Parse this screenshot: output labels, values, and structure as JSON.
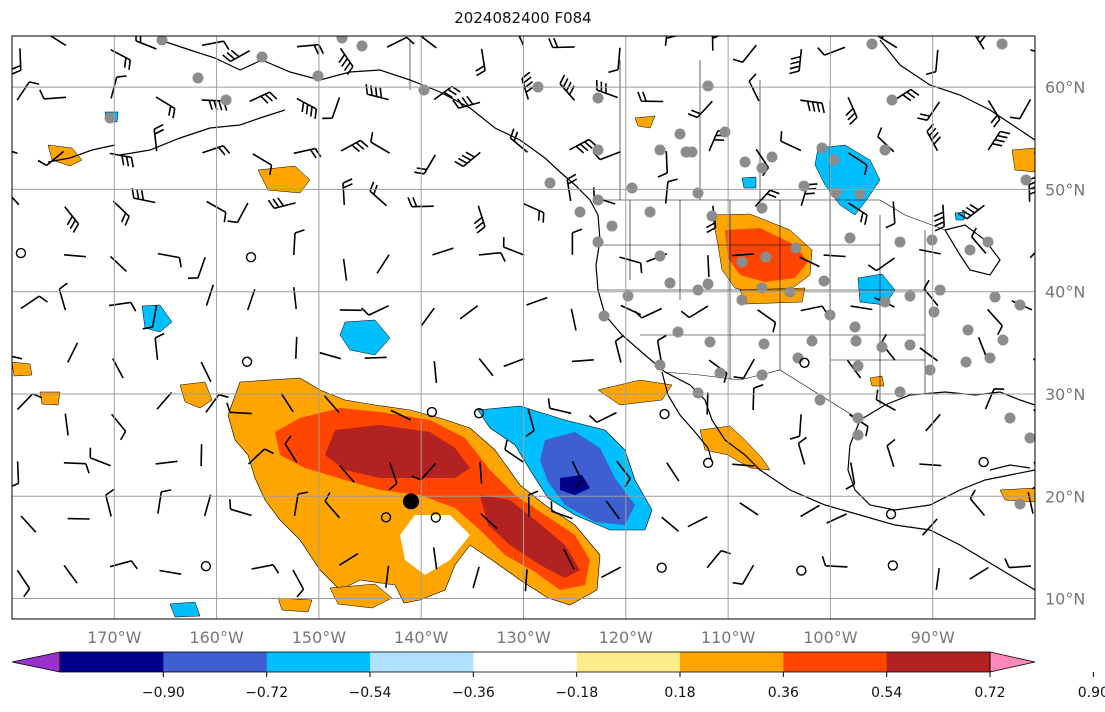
{
  "title": "2024082400 F084",
  "map": {
    "lon_range": [
      -180,
      -80
    ],
    "lat_range": [
      8,
      65
    ],
    "lat_ticks": [
      {
        "value": 60,
        "label": "60°N"
      },
      {
        "value": 50,
        "label": "50°N"
      },
      {
        "value": 40,
        "label": "40°N"
      },
      {
        "value": 30,
        "label": "30°N"
      },
      {
        "value": 20,
        "label": "20°N"
      },
      {
        "value": 10,
        "label": "10°N"
      }
    ],
    "lon_ticks": [
      {
        "value": -170,
        "label": "170°W"
      },
      {
        "value": -160,
        "label": "160°W"
      },
      {
        "value": -150,
        "label": "150°W"
      },
      {
        "value": -140,
        "label": "140°W"
      },
      {
        "value": -130,
        "label": "130°W"
      },
      {
        "value": -120,
        "label": "120°W"
      },
      {
        "value": -110,
        "label": "110°W"
      },
      {
        "value": -100,
        "label": "100°W"
      },
      {
        "value": -90,
        "label": "90°W"
      }
    ],
    "storm_marker": {
      "lon": -141,
      "lat": 19.5
    },
    "colors": {
      "grid": "#9e9e9e",
      "coast": "#000000",
      "station": "#8c8c8c"
    }
  },
  "colorbar": {
    "colors": [
      "#9932cc",
      "#00008b",
      "#3d5fcf",
      "#00bfff",
      "#b0e2ff",
      "#ffffff",
      "#ffec8b",
      "#ffa500",
      "#ff4500",
      "#b22222",
      "#ff88bb"
    ],
    "tick_labels": [
      "−0.90",
      "−0.72",
      "−0.54",
      "−0.36",
      "−0.18",
      "0.18",
      "0.36",
      "0.54",
      "0.72",
      "0.90"
    ]
  }
}
